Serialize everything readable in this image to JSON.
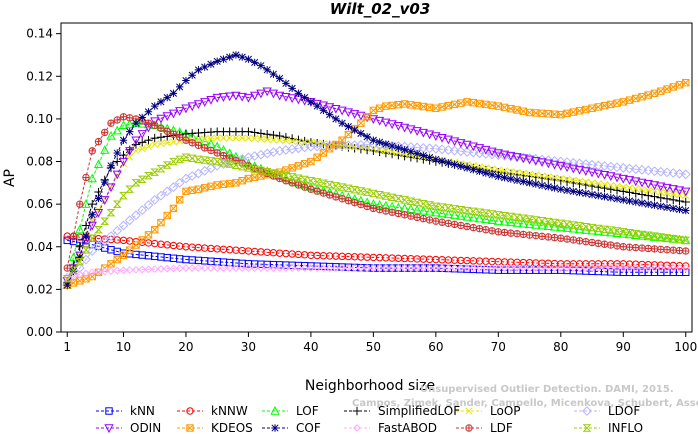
{
  "chart_data": {
    "type": "line",
    "title": "Wilt_02_v03",
    "xlabel": "Neighborhood size",
    "ylabel": "AP",
    "xlim": [
      0,
      101
    ],
    "ylim": [
      0,
      0.145
    ],
    "xticks": [
      1,
      10,
      20,
      30,
      40,
      50,
      60,
      70,
      80,
      90,
      100
    ],
    "yticks": [
      "0.00",
      "0.02",
      "0.04",
      "0.06",
      "0.08",
      "0.10",
      "0.12",
      "0.14"
    ],
    "grid": false,
    "legend_position": "bottom",
    "watermark": [
      "Unsupervised Outlier Detection. DAMI, 2015.",
      "Campos, Zimek, Sander, Campello, Micenkova, Schubert, Assent, Houle"
    ],
    "series": [
      {
        "name": "kNN",
        "color": "#0000ff",
        "marker": "square",
        "x": [
          1,
          5,
          10,
          20,
          30,
          40,
          50,
          60,
          70,
          80,
          90,
          100
        ],
        "values": [
          0.043,
          0.041,
          0.037,
          0.034,
          0.032,
          0.031,
          0.03,
          0.03,
          0.029,
          0.029,
          0.028,
          0.028
        ]
      },
      {
        "name": "kNNW",
        "color": "#ff0000",
        "marker": "circle",
        "x": [
          1,
          5,
          10,
          20,
          30,
          40,
          50,
          60,
          70,
          80,
          90,
          100
        ],
        "values": [
          0.045,
          0.044,
          0.043,
          0.04,
          0.038,
          0.036,
          0.035,
          0.034,
          0.033,
          0.032,
          0.032,
          0.031
        ]
      },
      {
        "name": "LOF",
        "color": "#00ff00",
        "marker": "triangle-up",
        "x": [
          1,
          3,
          5,
          8,
          10,
          12,
          15,
          20,
          25,
          30,
          35,
          40,
          45,
          50,
          60,
          70,
          80,
          90,
          100
        ],
        "values": [
          0.022,
          0.048,
          0.072,
          0.092,
          0.097,
          0.098,
          0.097,
          0.093,
          0.087,
          0.079,
          0.073,
          0.068,
          0.064,
          0.06,
          0.056,
          0.052,
          0.049,
          0.046,
          0.043
        ]
      },
      {
        "name": "SimplifiedLOF",
        "color": "#000000",
        "marker": "plus",
        "x": [
          1,
          3,
          5,
          8,
          10,
          12,
          15,
          20,
          25,
          30,
          35,
          40,
          50,
          60,
          70,
          80,
          90,
          100
        ],
        "values": [
          0.023,
          0.04,
          0.06,
          0.077,
          0.083,
          0.088,
          0.091,
          0.093,
          0.094,
          0.094,
          0.092,
          0.089,
          0.085,
          0.08,
          0.075,
          0.071,
          0.066,
          0.061
        ]
      },
      {
        "name": "LoOP",
        "color": "#e6e600",
        "marker": "x",
        "x": [
          1,
          3,
          5,
          8,
          10,
          12,
          15,
          20,
          25,
          30,
          35,
          40,
          50,
          60,
          70,
          80,
          90,
          100
        ],
        "values": [
          0.022,
          0.036,
          0.052,
          0.068,
          0.079,
          0.085,
          0.088,
          0.09,
          0.091,
          0.091,
          0.09,
          0.089,
          0.086,
          0.081,
          0.076,
          0.072,
          0.068,
          0.064
        ]
      },
      {
        "name": "LDOF",
        "color": "#b4b4ff",
        "marker": "diamond",
        "x": [
          1,
          3,
          5,
          8,
          10,
          15,
          20,
          25,
          30,
          35,
          40,
          50,
          60,
          70,
          80,
          90,
          100
        ],
        "values": [
          0.022,
          0.03,
          0.038,
          0.045,
          0.05,
          0.062,
          0.072,
          0.078,
          0.082,
          0.085,
          0.087,
          0.088,
          0.086,
          0.083,
          0.08,
          0.077,
          0.074
        ]
      },
      {
        "name": "ODIN",
        "color": "#9900ff",
        "marker": "triangle-down",
        "x": [
          1,
          3,
          5,
          8,
          10,
          12,
          15,
          20,
          23,
          25,
          28,
          30,
          33,
          35,
          40,
          45,
          50,
          55,
          60,
          70,
          80,
          90,
          100
        ],
        "values": [
          0.024,
          0.036,
          0.05,
          0.068,
          0.08,
          0.09,
          0.099,
          0.105,
          0.108,
          0.11,
          0.111,
          0.11,
          0.113,
          0.111,
          0.108,
          0.104,
          0.1,
          0.096,
          0.092,
          0.084,
          0.078,
          0.072,
          0.066
        ]
      },
      {
        "name": "KDEOS",
        "color": "#ff9900",
        "marker": "square-x",
        "x": [
          1,
          5,
          10,
          15,
          18,
          20,
          22,
          25,
          28,
          30,
          35,
          40,
          45,
          48,
          50,
          52,
          55,
          60,
          65,
          70,
          75,
          80,
          85,
          90,
          95,
          100
        ],
        "values": [
          0.022,
          0.026,
          0.036,
          0.048,
          0.058,
          0.066,
          0.067,
          0.069,
          0.07,
          0.072,
          0.075,
          0.08,
          0.09,
          0.098,
          0.104,
          0.106,
          0.107,
          0.105,
          0.108,
          0.106,
          0.103,
          0.102,
          0.105,
          0.108,
          0.112,
          0.117
        ]
      },
      {
        "name": "LDF",
        "color": "#cc3333",
        "marker": "circle-plus",
        "x": [
          1,
          3,
          5,
          8,
          10,
          12,
          15,
          20,
          25,
          30,
          35,
          40,
          50,
          60,
          70,
          80,
          90,
          100
        ],
        "values": [
          0.03,
          0.06,
          0.085,
          0.098,
          0.101,
          0.1,
          0.097,
          0.09,
          0.084,
          0.078,
          0.072,
          0.067,
          0.058,
          0.052,
          0.047,
          0.044,
          0.04,
          0.038
        ]
      },
      {
        "name": "COF",
        "color": "#000080",
        "marker": "star",
        "x": [
          1,
          3,
          5,
          8,
          10,
          12,
          15,
          18,
          20,
          22,
          25,
          27,
          28,
          30,
          32,
          35,
          38,
          40,
          45,
          50,
          60,
          70,
          80,
          90,
          100
        ],
        "values": [
          0.022,
          0.035,
          0.055,
          0.078,
          0.09,
          0.098,
          0.106,
          0.112,
          0.118,
          0.123,
          0.127,
          0.129,
          0.13,
          0.128,
          0.125,
          0.119,
          0.112,
          0.108,
          0.098,
          0.09,
          0.081,
          0.073,
          0.067,
          0.062,
          0.057
        ]
      },
      {
        "name": "FastABOD",
        "color": "#ffaaff",
        "marker": "diamond-small",
        "x": [
          1,
          5,
          10,
          20,
          30,
          40,
          50,
          60,
          70,
          80,
          90,
          100
        ],
        "values": [
          0.026,
          0.028,
          0.029,
          0.03,
          0.03,
          0.03,
          0.03,
          0.03,
          0.03,
          0.03,
          0.03,
          0.03
        ]
      },
      {
        "name": "INFLO",
        "color": "#99cc00",
        "marker": "hourglass",
        "x": [
          1,
          3,
          5,
          8,
          10,
          12,
          15,
          18,
          20,
          22,
          25,
          30,
          35,
          40,
          50,
          60,
          70,
          80,
          90,
          100
        ],
        "values": [
          0.025,
          0.033,
          0.044,
          0.056,
          0.064,
          0.07,
          0.075,
          0.08,
          0.082,
          0.081,
          0.08,
          0.077,
          0.074,
          0.071,
          0.065,
          0.059,
          0.055,
          0.051,
          0.047,
          0.043
        ]
      }
    ]
  }
}
